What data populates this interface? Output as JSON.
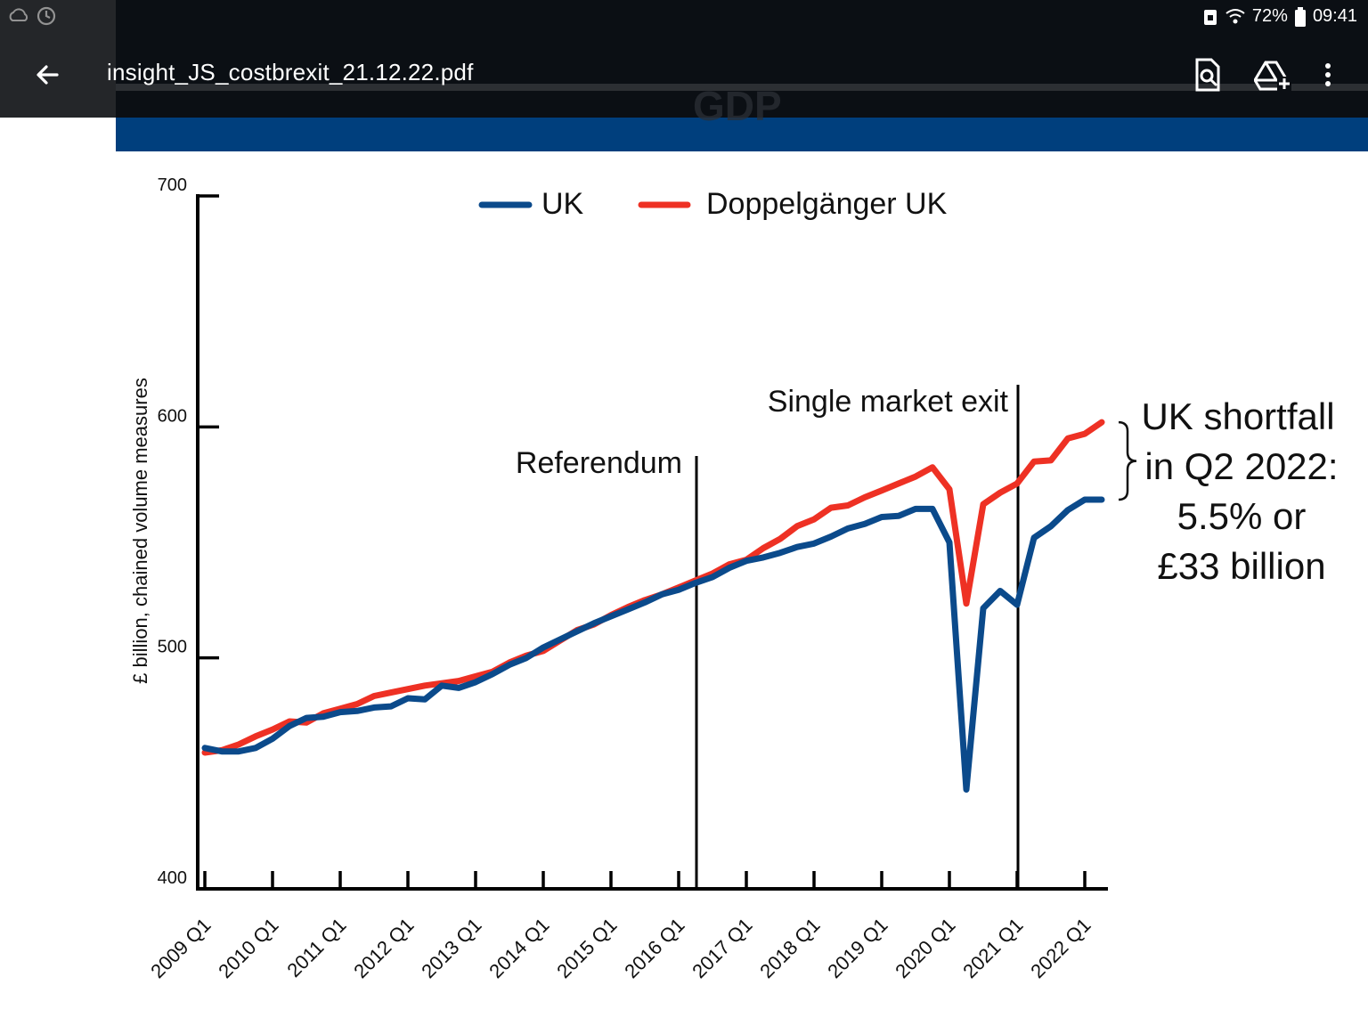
{
  "status_bar": {
    "battery": "72%",
    "time": "09:41"
  },
  "app_bar": {
    "title": "insight_JS_costbrexit_21.12.22.pdf"
  },
  "document": {
    "section_title": "GDP"
  },
  "colors": {
    "uk": "#0b4a8b",
    "doppelganger": "#ee3124",
    "banner": "#003f7d"
  },
  "chart_data": {
    "type": "line",
    "ylabel": "£ billion, chained volume measures",
    "ylim": [
      400,
      700
    ],
    "yticks": [
      {
        "value": 400,
        "label": "400"
      },
      {
        "value": 500,
        "label": "500"
      },
      {
        "value": 600,
        "label": "600"
      },
      {
        "value": 700,
        "label": "700"
      }
    ],
    "xlim": [
      2009.0,
      2022.5
    ],
    "xticks": [
      {
        "value": 2009,
        "label": "2009 Q1"
      },
      {
        "value": 2010,
        "label": "2010 Q1"
      },
      {
        "value": 2011,
        "label": "2011 Q1"
      },
      {
        "value": 2012,
        "label": "2012 Q1"
      },
      {
        "value": 2013,
        "label": "2013 Q1"
      },
      {
        "value": 2014,
        "label": "2014 Q1"
      },
      {
        "value": 2015,
        "label": "2015 Q1"
      },
      {
        "value": 2016,
        "label": "2016 Q1"
      },
      {
        "value": 2017,
        "label": "2017 Q1"
      },
      {
        "value": 2018,
        "label": "2018 Q1"
      },
      {
        "value": 2019,
        "label": "2019 Q1"
      },
      {
        "value": 2020,
        "label": "2020 Q1"
      },
      {
        "value": 2021,
        "label": "2021 Q1"
      },
      {
        "value": 2022,
        "label": "2022 Q1"
      }
    ],
    "legend": [
      {
        "name": "UK",
        "color": "#0b4a8b"
      },
      {
        "name": "Doppelgänger UK",
        "color": "#ee3124"
      }
    ],
    "series": [
      {
        "name": "UK",
        "color": "#0b4a8b",
        "x": [
          2009.0,
          2009.25,
          2009.5,
          2009.75,
          2010.0,
          2010.25,
          2010.5,
          2010.75,
          2011.0,
          2011.25,
          2011.5,
          2011.75,
          2012.0,
          2012.25,
          2012.5,
          2012.75,
          2013.0,
          2013.25,
          2013.5,
          2013.75,
          2014.0,
          2014.25,
          2014.5,
          2014.75,
          2015.0,
          2015.25,
          2015.5,
          2015.75,
          2016.0,
          2016.25,
          2016.5,
          2016.75,
          2017.0,
          2017.25,
          2017.5,
          2017.75,
          2018.0,
          2018.25,
          2018.5,
          2018.75,
          2019.0,
          2019.25,
          2019.5,
          2019.75,
          2020.0,
          2020.25,
          2020.5,
          2020.75,
          2021.0,
          2021.25,
          2021.5,
          2021.75,
          2022.0,
          2022.25
        ],
        "values": [
          461,
          459.5,
          459.5,
          461,
          465,
          470.5,
          474,
          474.5,
          476.5,
          477,
          478.5,
          479,
          482.5,
          482,
          488,
          487,
          489.5,
          493,
          497,
          500,
          504.5,
          508,
          511.5,
          515,
          518,
          521,
          524,
          527.5,
          529.5,
          532.5,
          535,
          539,
          542,
          543.5,
          545.5,
          548,
          549.5,
          552.5,
          556,
          558,
          561,
          561.5,
          564.5,
          564.5,
          550,
          443,
          521.5,
          529,
          523,
          552,
          557,
          564,
          568.5,
          568.5
        ]
      },
      {
        "name": "Doppelgänger UK",
        "color": "#ee3124",
        "x": [
          2009.0,
          2009.25,
          2009.5,
          2009.75,
          2010.0,
          2010.25,
          2010.5,
          2010.75,
          2011.0,
          2011.25,
          2011.5,
          2011.75,
          2012.0,
          2012.25,
          2012.5,
          2012.75,
          2013.0,
          2013.25,
          2013.5,
          2013.75,
          2014.0,
          2014.25,
          2014.5,
          2014.75,
          2015.0,
          2015.25,
          2015.5,
          2015.75,
          2016.0,
          2016.25,
          2016.5,
          2016.75,
          2017.0,
          2017.25,
          2017.5,
          2017.75,
          2018.0,
          2018.25,
          2018.5,
          2018.75,
          2019.0,
          2019.25,
          2019.5,
          2019.75,
          2020.0,
          2020.25,
          2020.5,
          2020.75,
          2021.0,
          2021.25,
          2021.5,
          2021.75,
          2022.0,
          2022.25
        ],
        "values": [
          459,
          460,
          462.5,
          466,
          469,
          472.5,
          472,
          476,
          478,
          480,
          483.5,
          485,
          486.5,
          488,
          489,
          490,
          492,
          494,
          498,
          501,
          503,
          507.5,
          512,
          514.5,
          518.5,
          522,
          525,
          527.5,
          530.5,
          533.5,
          536.5,
          540.5,
          542.5,
          547.5,
          551.5,
          557,
          560,
          565,
          566,
          569.5,
          572.5,
          575.5,
          578.5,
          582.5,
          573,
          523.5,
          566.5,
          571.5,
          575.5,
          585,
          585.5,
          595,
          597,
          602
        ]
      }
    ],
    "annotations": [
      {
        "label": "Referendum",
        "x": 2016.25
      },
      {
        "label": "Single market exit",
        "x": 2021.0
      }
    ],
    "callout": {
      "lines": [
        "UK shortfall",
        "in Q2 2022:",
        "5.5% or",
        "£33 billion"
      ],
      "y_range": [
        568.5,
        602
      ]
    }
  }
}
